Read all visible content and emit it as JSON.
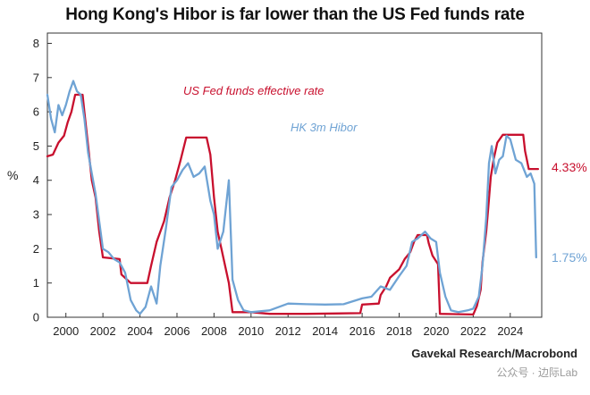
{
  "colors": {
    "fed": "#c8102e",
    "hibor": "#6fa3d4",
    "axis": "#333333"
  },
  "source": "Gavekal Research/Macrobond",
  "watermark": "公众号 · 边际Lab",
  "chart_data": {
    "type": "line",
    "title": "Hong Kong's Hibor is far lower than the US Fed funds rate",
    "xlabel": "",
    "ylabel": "%",
    "xlim": [
      1999.0,
      2025.7
    ],
    "ylim": [
      0,
      8.3
    ],
    "x_ticks": [
      2000,
      2002,
      2004,
      2006,
      2008,
      2010,
      2012,
      2014,
      2016,
      2018,
      2020,
      2022,
      2024
    ],
    "x_tick_labels": [
      "2000",
      "2002",
      "2004",
      "2006",
      "2008",
      "2010",
      "2012",
      "2014",
      "2016",
      "2018",
      "2020",
      "2022",
      "2024"
    ],
    "y_ticks": [
      0,
      1,
      2,
      3,
      4,
      5,
      6,
      7,
      8
    ],
    "y_tick_labels": [
      "0",
      "1",
      "2",
      "3",
      "4",
      "5",
      "6",
      "7",
      "8"
    ],
    "grid": false,
    "series": [
      {
        "name": "US Fed funds effective rate",
        "end_label": "4.33%",
        "points": [
          [
            1999.0,
            4.7
          ],
          [
            1999.3,
            4.75
          ],
          [
            1999.6,
            5.1
          ],
          [
            1999.9,
            5.3
          ],
          [
            2000.1,
            5.7
          ],
          [
            2000.3,
            6.0
          ],
          [
            2000.5,
            6.5
          ],
          [
            2000.9,
            6.5
          ],
          [
            2001.0,
            6.0
          ],
          [
            2001.2,
            5.0
          ],
          [
            2001.4,
            4.0
          ],
          [
            2001.6,
            3.5
          ],
          [
            2001.8,
            2.5
          ],
          [
            2002.0,
            1.75
          ],
          [
            2002.9,
            1.7
          ],
          [
            2003.0,
            1.25
          ],
          [
            2003.5,
            1.0
          ],
          [
            2004.4,
            1.0
          ],
          [
            2004.6,
            1.5
          ],
          [
            2004.9,
            2.2
          ],
          [
            2005.3,
            2.8
          ],
          [
            2005.6,
            3.5
          ],
          [
            2005.9,
            4.0
          ],
          [
            2006.2,
            4.6
          ],
          [
            2006.5,
            5.25
          ],
          [
            2007.6,
            5.25
          ],
          [
            2007.8,
            4.75
          ],
          [
            2008.0,
            3.5
          ],
          [
            2008.2,
            2.5
          ],
          [
            2008.4,
            2.0
          ],
          [
            2008.8,
            1.0
          ],
          [
            2009.0,
            0.15
          ],
          [
            2010.0,
            0.15
          ],
          [
            2011.0,
            0.1
          ],
          [
            2013.0,
            0.1
          ],
          [
            2015.9,
            0.12
          ],
          [
            2016.0,
            0.37
          ],
          [
            2016.9,
            0.4
          ],
          [
            2017.0,
            0.65
          ],
          [
            2017.3,
            0.9
          ],
          [
            2017.5,
            1.15
          ],
          [
            2018.0,
            1.4
          ],
          [
            2018.3,
            1.7
          ],
          [
            2018.6,
            1.9
          ],
          [
            2018.8,
            2.2
          ],
          [
            2019.0,
            2.4
          ],
          [
            2019.5,
            2.4
          ],
          [
            2019.6,
            2.15
          ],
          [
            2019.8,
            1.8
          ],
          [
            2020.1,
            1.55
          ],
          [
            2020.2,
            0.1
          ],
          [
            2022.0,
            0.08
          ],
          [
            2022.2,
            0.33
          ],
          [
            2022.4,
            0.8
          ],
          [
            2022.5,
            1.6
          ],
          [
            2022.7,
            2.5
          ],
          [
            2022.8,
            3.1
          ],
          [
            2022.95,
            4.1
          ],
          [
            2023.1,
            4.6
          ],
          [
            2023.3,
            5.1
          ],
          [
            2023.6,
            5.33
          ],
          [
            2024.7,
            5.33
          ],
          [
            2024.8,
            4.85
          ],
          [
            2024.9,
            4.6
          ],
          [
            2025.0,
            4.33
          ],
          [
            2025.5,
            4.33
          ]
        ]
      },
      {
        "name": "HK 3m Hibor",
        "end_label": "1.75%",
        "points": [
          [
            1999.0,
            6.5
          ],
          [
            1999.2,
            5.8
          ],
          [
            1999.4,
            5.4
          ],
          [
            1999.6,
            6.2
          ],
          [
            1999.8,
            5.9
          ],
          [
            2000.0,
            6.2
          ],
          [
            2000.2,
            6.6
          ],
          [
            2000.4,
            6.9
          ],
          [
            2000.6,
            6.6
          ],
          [
            2000.8,
            6.5
          ],
          [
            2001.0,
            5.8
          ],
          [
            2001.2,
            4.8
          ],
          [
            2001.4,
            4.2
          ],
          [
            2001.6,
            3.6
          ],
          [
            2001.8,
            2.8
          ],
          [
            2002.0,
            2.0
          ],
          [
            2002.3,
            1.9
          ],
          [
            2002.6,
            1.7
          ],
          [
            2002.9,
            1.6
          ],
          [
            2003.2,
            1.3
          ],
          [
            2003.5,
            0.5
          ],
          [
            2003.8,
            0.2
          ],
          [
            2004.0,
            0.1
          ],
          [
            2004.3,
            0.3
          ],
          [
            2004.6,
            0.9
          ],
          [
            2004.9,
            0.4
          ],
          [
            2005.1,
            1.5
          ],
          [
            2005.4,
            2.6
          ],
          [
            2005.7,
            3.8
          ],
          [
            2006.0,
            4.0
          ],
          [
            2006.3,
            4.3
          ],
          [
            2006.6,
            4.5
          ],
          [
            2006.9,
            4.1
          ],
          [
            2007.2,
            4.2
          ],
          [
            2007.5,
            4.4
          ],
          [
            2007.8,
            3.4
          ],
          [
            2008.0,
            3.0
          ],
          [
            2008.2,
            2.0
          ],
          [
            2008.5,
            2.5
          ],
          [
            2008.8,
            4.0
          ],
          [
            2009.0,
            1.1
          ],
          [
            2009.3,
            0.5
          ],
          [
            2009.6,
            0.2
          ],
          [
            2010.0,
            0.15
          ],
          [
            2011.0,
            0.2
          ],
          [
            2012.0,
            0.4
          ],
          [
            2013.0,
            0.38
          ],
          [
            2014.0,
            0.37
          ],
          [
            2015.0,
            0.38
          ],
          [
            2016.0,
            0.55
          ],
          [
            2016.5,
            0.6
          ],
          [
            2017.0,
            0.9
          ],
          [
            2017.5,
            0.8
          ],
          [
            2018.0,
            1.2
          ],
          [
            2018.4,
            1.5
          ],
          [
            2018.7,
            2.2
          ],
          [
            2019.0,
            2.3
          ],
          [
            2019.4,
            2.5
          ],
          [
            2019.7,
            2.3
          ],
          [
            2020.0,
            2.2
          ],
          [
            2020.2,
            1.3
          ],
          [
            2020.5,
            0.6
          ],
          [
            2020.8,
            0.2
          ],
          [
            2021.2,
            0.15
          ],
          [
            2021.7,
            0.2
          ],
          [
            2022.0,
            0.25
          ],
          [
            2022.3,
            0.6
          ],
          [
            2022.5,
            1.5
          ],
          [
            2022.7,
            2.9
          ],
          [
            2022.85,
            4.5
          ],
          [
            2023.0,
            5.0
          ],
          [
            2023.2,
            4.2
          ],
          [
            2023.4,
            4.6
          ],
          [
            2023.6,
            4.7
          ],
          [
            2023.8,
            5.3
          ],
          [
            2024.0,
            5.2
          ],
          [
            2024.3,
            4.6
          ],
          [
            2024.6,
            4.5
          ],
          [
            2024.9,
            4.1
          ],
          [
            2025.1,
            4.2
          ],
          [
            2025.3,
            3.9
          ],
          [
            2025.4,
            1.75
          ]
        ]
      }
    ]
  }
}
